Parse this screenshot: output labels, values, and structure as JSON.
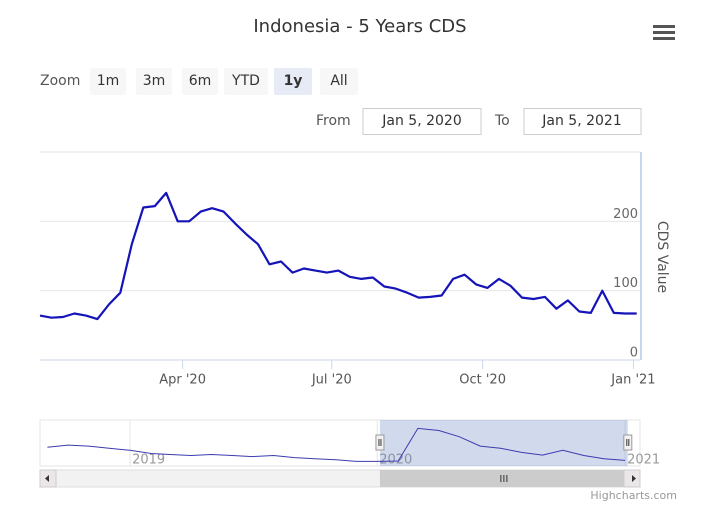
{
  "chart_data": {
    "type": "line",
    "title": "Indonesia - 5 Years CDS",
    "y_axis_label": "CDS Value",
    "credits": "Highcharts.com",
    "range_selector": {
      "zoom_label": "Zoom",
      "buttons": [
        "1m",
        "3m",
        "6m",
        "YTD",
        "1y",
        "All"
      ],
      "selected": "1y",
      "from_label": "From",
      "from": "Jan 5, 2020",
      "to_label": "To",
      "to": "Jan 5, 2021"
    },
    "color": "#1414b8",
    "x": [
      "2020-01-05",
      "2020-01-12",
      "2020-01-19",
      "2020-01-26",
      "2020-02-02",
      "2020-02-09",
      "2020-02-16",
      "2020-02-23",
      "2020-03-01",
      "2020-03-08",
      "2020-03-15",
      "2020-03-22",
      "2020-03-29",
      "2020-04-05",
      "2020-04-12",
      "2020-04-19",
      "2020-04-26",
      "2020-05-03",
      "2020-05-10",
      "2020-05-17",
      "2020-05-24",
      "2020-05-31",
      "2020-06-07",
      "2020-06-14",
      "2020-06-21",
      "2020-06-28",
      "2020-07-05",
      "2020-07-12",
      "2020-07-19",
      "2020-07-26",
      "2020-08-02",
      "2020-08-09",
      "2020-08-16",
      "2020-08-23",
      "2020-08-30",
      "2020-09-06",
      "2020-09-13",
      "2020-09-20",
      "2020-09-27",
      "2020-10-04",
      "2020-10-11",
      "2020-10-18",
      "2020-10-25",
      "2020-11-01",
      "2020-11-08",
      "2020-11-15",
      "2020-11-22",
      "2020-11-29",
      "2020-12-06",
      "2020-12-13",
      "2020-12-20",
      "2020-12-27",
      "2021-01-03"
    ],
    "values": [
      64,
      61,
      62,
      67,
      64,
      59,
      80,
      97,
      167,
      220,
      222,
      241,
      200,
      200,
      214,
      219,
      214,
      197,
      181,
      167,
      138,
      142,
      126,
      132,
      129,
      126,
      129,
      120,
      117,
      119,
      106,
      103,
      97,
      90,
      91,
      93,
      117,
      123,
      109,
      104,
      117,
      107,
      90,
      88,
      91,
      74,
      86,
      70,
      68,
      100,
      68,
      67,
      67
    ],
    "xlim": [
      "2020-01-05",
      "2021-01-05"
    ],
    "xticks": [
      {
        "value": "2020-04-01",
        "label": "Apr '20"
      },
      {
        "value": "2020-07-01",
        "label": "Jul '20"
      },
      {
        "value": "2020-10-01",
        "label": "Oct '20"
      },
      {
        "value": "2021-01-01",
        "label": "Jan '21"
      }
    ],
    "ylim": [
      0,
      300
    ],
    "yticks": [
      0,
      100,
      200
    ],
    "grid": true,
    "navigator": {
      "x": [
        "2018-09",
        "2018-10",
        "2018-11",
        "2018-12",
        "2019-01",
        "2019-02",
        "2019-03",
        "2019-04",
        "2019-05",
        "2019-06",
        "2019-07",
        "2019-08",
        "2019-09",
        "2019-10",
        "2019-11",
        "2019-12",
        "2020-01",
        "2020-02",
        "2020-03",
        "2020-04",
        "2020-05",
        "2020-06",
        "2020-07",
        "2020-08",
        "2020-09",
        "2020-10",
        "2020-11",
        "2020-12",
        "2021-01"
      ],
      "values": [
        130,
        140,
        135,
        125,
        115,
        100,
        95,
        90,
        95,
        90,
        85,
        90,
        80,
        75,
        70,
        62,
        62,
        64,
        220,
        210,
        180,
        135,
        125,
        105,
        92,
        115,
        90,
        75,
        67
      ],
      "xlim": [
        "2018-08-21",
        "2021-01-23"
      ],
      "ylim": [
        40,
        260
      ],
      "xticks": [
        {
          "value": "2019-01-01",
          "label": "2019"
        },
        {
          "value": "2020-01-01",
          "label": "2020"
        },
        {
          "value": "2021-01-01",
          "label": "2021"
        }
      ],
      "color": "#3b3bb0"
    }
  }
}
